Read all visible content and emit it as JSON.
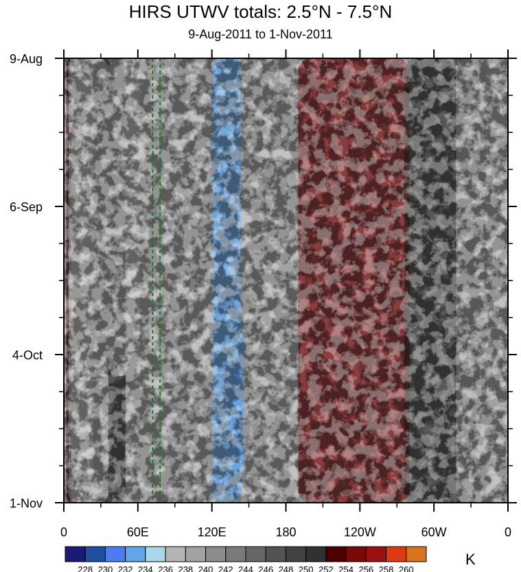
{
  "header": {
    "title": "HIRS UTWV totals: 2.5°N - 7.5°N",
    "subtitle": "9-Aug-2011 to 1-Nov-2011"
  },
  "chart_data": {
    "type": "heatmap",
    "title": "HIRS UTWV totals: 2.5°N - 7.5°N",
    "subtitle": "9-Aug-2011 to 1-Nov-2011",
    "x_ticks": [
      "0",
      "60E",
      "120E",
      "180",
      "120W",
      "60W",
      "0"
    ],
    "x_tick_values": [
      0,
      60,
      120,
      180,
      240,
      300,
      360
    ],
    "y_ticks": [
      "9-Aug",
      "6-Sep",
      "4-Oct",
      "1-Nov"
    ],
    "y_tick_values": [
      "2011-08-09",
      "2011-09-06",
      "2011-10-04",
      "2011-11-01"
    ],
    "xlim": [
      0,
      360
    ],
    "ylim": [
      "2011-08-09",
      "2011-11-01"
    ],
    "reference_lines_lon": [
      72,
      78
    ],
    "colorbar": {
      "unit": "K",
      "levels": [
        228,
        230,
        232,
        234,
        236,
        238,
        240,
        242,
        244,
        246,
        248,
        250,
        252,
        254,
        256,
        258,
        260
      ],
      "colors": [
        "#1a1a78",
        "#1f4f9e",
        "#4a7ef0",
        "#62a6ea",
        "#a9d8ea",
        "#b5b5b5",
        "#a2a2a2",
        "#8c8c8c",
        "#7a7a7a",
        "#676767",
        "#535353",
        "#424242",
        "#313131",
        "#4d0000",
        "#7d0808",
        "#9b1010",
        "#e03a12",
        "#d8731e"
      ]
    },
    "features": {
      "moist_regions": [
        {
          "lon": [
            120,
            144
          ],
          "days": [
            0,
            84
          ],
          "value": 232
        },
        {
          "lon": [
            36,
            62
          ],
          "days": [
            0,
            60
          ],
          "value": 236
        },
        {
          "lon": [
            136,
            146
          ],
          "days": [
            50,
            78
          ],
          "value": 232
        },
        {
          "lon": [
            4,
            36
          ],
          "days": [
            0,
            84
          ],
          "value": 236
        },
        {
          "lon": [
            318,
            342
          ],
          "days": [
            0,
            84
          ],
          "value": 236
        }
      ],
      "dry_bands": [
        {
          "lon": [
            190,
            280
          ],
          "days": [
            0,
            84
          ],
          "value": 254
        },
        {
          "lon": [
            276,
            342
          ],
          "days": [
            0,
            84
          ],
          "value": 250
        },
        {
          "lon": [
            2,
            6
          ],
          "days": [
            0,
            84
          ],
          "value": 252
        },
        {
          "lon": [
            24,
            50
          ],
          "days": [
            0,
            84
          ],
          "value": 250
        }
      ]
    }
  }
}
